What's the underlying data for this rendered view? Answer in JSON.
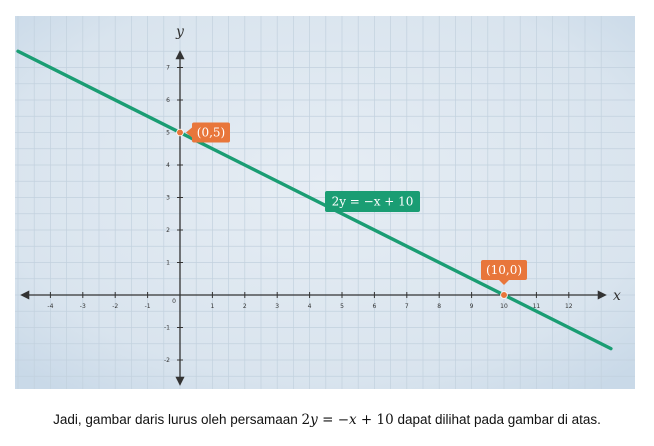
{
  "caption": {
    "before": "Jadi, gambar daris lurus oleh persamaan ",
    "math": {
      "lhs_coef": "2",
      "lhs_var": "y",
      "eq": " = ",
      "rhs_neg": "−",
      "rhs_var": "x",
      "rhs_const": " + 10"
    },
    "after": " dapat dilihat pada gambar di atas."
  },
  "chart_data": {
    "type": "line",
    "xlabel": "x",
    "ylabel": "y",
    "xlim": [
      -5,
      13.3
    ],
    "ylim": [
      -2.9,
      7.8
    ],
    "x_ticks": [
      -4,
      -3,
      -2,
      -1,
      1,
      2,
      3,
      4,
      5,
      6,
      7,
      8,
      9,
      10,
      11,
      12
    ],
    "y_ticks": [
      -2,
      -1,
      1,
      2,
      3,
      4,
      5,
      6,
      7
    ],
    "origin_label": "0",
    "grid": true,
    "series": [
      {
        "name": "2y = −x + 10",
        "equation": "2y = −x + 10",
        "x": [
          -5,
          13.3
        ],
        "y": [
          7.5,
          -1.65
        ],
        "color": "#1a9d73"
      }
    ],
    "points": [
      {
        "x": 0,
        "y": 5,
        "label": "(0,5)",
        "color": "#e8763b"
      },
      {
        "x": 10,
        "y": 0,
        "label": "(10,0)",
        "color": "#e8763b"
      }
    ],
    "colors": {
      "line": "#1a9d73",
      "point": "#e8763b",
      "callout_orange": "#e8763b",
      "callout_green": "#1a9d73",
      "background": "#d7e3ee",
      "grid": "#c2d1de",
      "axis": "#333333"
    }
  }
}
